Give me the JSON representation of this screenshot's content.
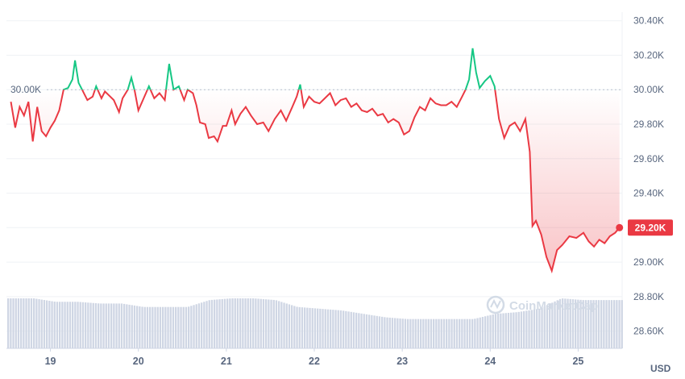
{
  "chart_data": {
    "type": "area",
    "currency": "USD",
    "ylim": [
      28500,
      30450
    ],
    "xlim": [
      18.5,
      25.5
    ],
    "y_ticks": [
      "30.40K",
      "30.20K",
      "30.00K",
      "29.80K",
      "29.60K",
      "29.40K",
      "29.20K",
      "29.00K",
      "28.80K",
      "28.60K"
    ],
    "y_tick_values": [
      30400,
      30200,
      30000,
      29800,
      29600,
      29400,
      29200,
      29000,
      28800,
      28600
    ],
    "x_ticks": [
      "19",
      "20",
      "21",
      "22",
      "23",
      "24",
      "25"
    ],
    "x_tick_values": [
      19,
      20,
      21,
      22,
      23,
      24,
      25
    ],
    "reference_value": 30000,
    "reference_label": "30.00K",
    "current_value": 29200,
    "current_label": "29.20K",
    "grid": true,
    "colors": {
      "above_reference": "#16c784",
      "below_reference": "#ea3943",
      "volume": "#cfd6e4",
      "grid": "#eff2f5",
      "badge": "#ea3943"
    },
    "watermark": "CoinMarketCap",
    "price_series": {
      "name": "",
      "points": [
        [
          18.55,
          29930
        ],
        [
          18.6,
          29780
        ],
        [
          18.65,
          29900
        ],
        [
          18.7,
          29850
        ],
        [
          18.75,
          29930
        ],
        [
          18.8,
          29700
        ],
        [
          18.85,
          29900
        ],
        [
          18.9,
          29760
        ],
        [
          18.95,
          29730
        ],
        [
          19.0,
          29780
        ],
        [
          19.05,
          29820
        ],
        [
          19.1,
          29880
        ],
        [
          19.15,
          30000
        ],
        [
          19.2,
          30010
        ],
        [
          19.25,
          30060
        ],
        [
          19.28,
          30170
        ],
        [
          19.32,
          30040
        ],
        [
          19.36,
          30000
        ],
        [
          19.42,
          29940
        ],
        [
          19.48,
          29960
        ],
        [
          19.52,
          30020
        ],
        [
          19.58,
          29950
        ],
        [
          19.62,
          29990
        ],
        [
          19.68,
          29960
        ],
        [
          19.72,
          29940
        ],
        [
          19.78,
          29870
        ],
        [
          19.82,
          29950
        ],
        [
          19.88,
          30000
        ],
        [
          19.92,
          30070
        ],
        [
          19.96,
          29990
        ],
        [
          20.0,
          29880
        ],
        [
          20.06,
          29950
        ],
        [
          20.12,
          30020
        ],
        [
          20.18,
          29950
        ],
        [
          20.24,
          29980
        ],
        [
          20.3,
          29940
        ],
        [
          20.35,
          30150
        ],
        [
          20.4,
          30000
        ],
        [
          20.46,
          30020
        ],
        [
          20.52,
          29940
        ],
        [
          20.56,
          30000
        ],
        [
          20.62,
          29980
        ],
        [
          20.66,
          29910
        ],
        [
          20.7,
          29810
        ],
        [
          20.76,
          29800
        ],
        [
          20.8,
          29720
        ],
        [
          20.86,
          29730
        ],
        [
          20.9,
          29700
        ],
        [
          20.96,
          29790
        ],
        [
          21.0,
          29790
        ],
        [
          21.06,
          29880
        ],
        [
          21.1,
          29800
        ],
        [
          21.16,
          29860
        ],
        [
          21.22,
          29900
        ],
        [
          21.28,
          29850
        ],
        [
          21.35,
          29800
        ],
        [
          21.42,
          29810
        ],
        [
          21.48,
          29760
        ],
        [
          21.55,
          29830
        ],
        [
          21.62,
          29880
        ],
        [
          21.68,
          29820
        ],
        [
          21.75,
          29900
        ],
        [
          21.8,
          29960
        ],
        [
          21.84,
          30030
        ],
        [
          21.88,
          29900
        ],
        [
          21.94,
          29960
        ],
        [
          22.0,
          29930
        ],
        [
          22.06,
          29920
        ],
        [
          22.12,
          29950
        ],
        [
          22.18,
          29980
        ],
        [
          22.24,
          29910
        ],
        [
          22.3,
          29940
        ],
        [
          22.36,
          29950
        ],
        [
          22.42,
          29900
        ],
        [
          22.48,
          29920
        ],
        [
          22.54,
          29880
        ],
        [
          22.6,
          29870
        ],
        [
          22.66,
          29890
        ],
        [
          22.72,
          29850
        ],
        [
          22.78,
          29860
        ],
        [
          22.84,
          29810
        ],
        [
          22.9,
          29830
        ],
        [
          22.96,
          29810
        ],
        [
          23.02,
          29740
        ],
        [
          23.08,
          29760
        ],
        [
          23.14,
          29840
        ],
        [
          23.2,
          29900
        ],
        [
          23.26,
          29880
        ],
        [
          23.32,
          29950
        ],
        [
          23.38,
          29920
        ],
        [
          23.44,
          29910
        ],
        [
          23.5,
          29910
        ],
        [
          23.56,
          29930
        ],
        [
          23.62,
          29900
        ],
        [
          23.68,
          29960
        ],
        [
          23.72,
          30000
        ],
        [
          23.76,
          30060
        ],
        [
          23.8,
          30240
        ],
        [
          23.84,
          30100
        ],
        [
          23.88,
          30010
        ],
        [
          23.94,
          30050
        ],
        [
          24.0,
          30080
        ],
        [
          24.05,
          30020
        ],
        [
          24.1,
          29830
        ],
        [
          24.16,
          29720
        ],
        [
          24.22,
          29790
        ],
        [
          24.28,
          29810
        ],
        [
          24.34,
          29760
        ],
        [
          24.4,
          29830
        ],
        [
          24.45,
          29640
        ],
        [
          24.48,
          29210
        ],
        [
          24.52,
          29240
        ],
        [
          24.58,
          29160
        ],
        [
          24.64,
          29030
        ],
        [
          24.7,
          28950
        ],
        [
          24.76,
          29070
        ],
        [
          24.82,
          29100
        ],
        [
          24.9,
          29150
        ],
        [
          24.98,
          29140
        ],
        [
          25.06,
          29170
        ],
        [
          25.12,
          29120
        ],
        [
          25.18,
          29090
        ],
        [
          25.24,
          29130
        ],
        [
          25.3,
          29110
        ],
        [
          25.36,
          29150
        ],
        [
          25.42,
          29170
        ],
        [
          25.47,
          29200
        ]
      ]
    },
    "volume_series": {
      "name": "",
      "points": [
        [
          18.55,
          28790
        ],
        [
          18.8,
          28790
        ],
        [
          19.05,
          28770
        ],
        [
          19.3,
          28770
        ],
        [
          19.55,
          28760
        ],
        [
          19.8,
          28760
        ],
        [
          20.05,
          28740
        ],
        [
          20.3,
          28740
        ],
        [
          20.55,
          28740
        ],
        [
          20.8,
          28780
        ],
        [
          21.05,
          28790
        ],
        [
          21.3,
          28790
        ],
        [
          21.55,
          28780
        ],
        [
          21.8,
          28740
        ],
        [
          22.05,
          28730
        ],
        [
          22.3,
          28720
        ],
        [
          22.55,
          28700
        ],
        [
          22.8,
          28680
        ],
        [
          23.05,
          28670
        ],
        [
          23.3,
          28670
        ],
        [
          23.55,
          28670
        ],
        [
          23.8,
          28670
        ],
        [
          24.05,
          28700
        ],
        [
          24.3,
          28710
        ],
        [
          24.55,
          28730
        ],
        [
          24.8,
          28790
        ],
        [
          25.05,
          28780
        ],
        [
          25.3,
          28780
        ],
        [
          25.47,
          28780
        ]
      ]
    }
  }
}
